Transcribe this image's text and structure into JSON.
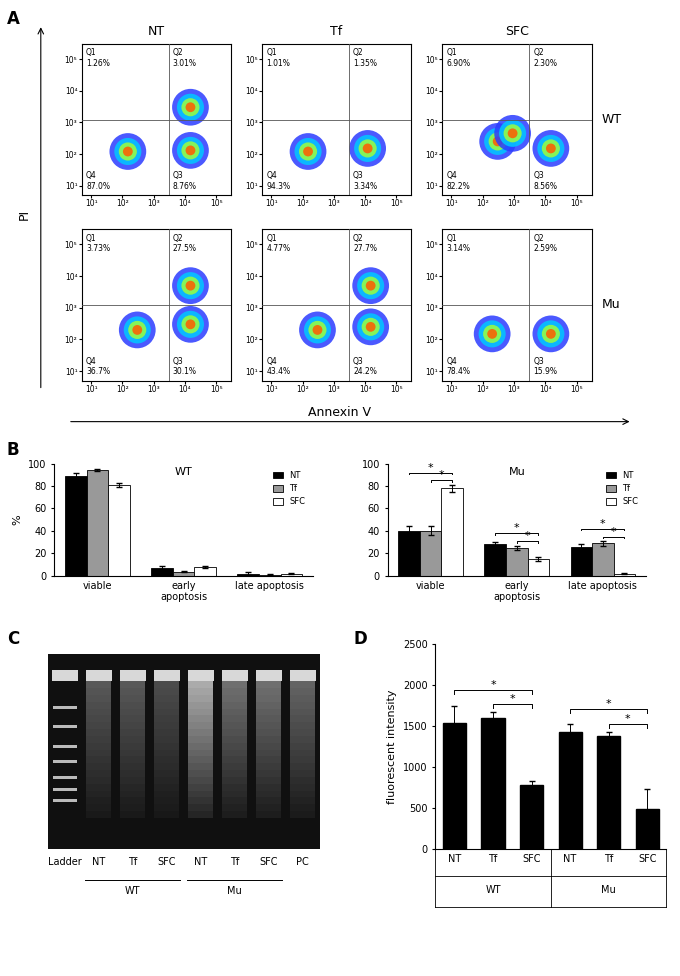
{
  "panel_labels": [
    "A",
    "B",
    "C",
    "D"
  ],
  "chart_data": [
    {
      "type": "scatter",
      "x_label": "Annexin V",
      "y_label": "PI",
      "columns": [
        "NT",
        "Tf",
        "SFC"
      ],
      "rows": [
        "WT",
        "Mu"
      ],
      "log": true,
      "xlim": [
        5,
        300000
      ],
      "ylim": [
        5,
        300000
      ],
      "xticks": [
        {
          "value": 10,
          "label": "10¹"
        },
        {
          "value": 100,
          "label": "10²"
        },
        {
          "value": 1000,
          "label": "10³"
        },
        {
          "value": 10000,
          "label": "10⁴"
        },
        {
          "value": 100000,
          "label": "10⁵"
        }
      ],
      "yticks": [
        {
          "value": 10,
          "label": "10¹"
        },
        {
          "value": 100,
          "label": "10²"
        },
        {
          "value": 1000,
          "label": "10³"
        },
        {
          "value": 10000,
          "label": "10⁴"
        },
        {
          "value": 100000,
          "label": "10⁵"
        }
      ],
      "gate": {
        "x": 3000,
        "y": 1200
      },
      "plots": [
        {
          "row": "WT",
          "column": "NT",
          "quadrants": [
            {
              "name": "Q1",
              "label": "1.26%"
            },
            {
              "name": "Q2",
              "label": "3.01%"
            },
            {
              "name": "Q3",
              "label": "8.76%"
            },
            {
              "name": "Q4",
              "label": "87.0%"
            }
          ],
          "clusters": [
            {
              "x": 150,
              "y": 120
            },
            {
              "x": 15000,
              "y": 130
            },
            {
              "x": 15000,
              "y": 3000
            }
          ]
        },
        {
          "row": "WT",
          "column": "Tf",
          "quadrants": [
            {
              "name": "Q1",
              "label": "1.01%"
            },
            {
              "name": "Q2",
              "label": "1.35%"
            },
            {
              "name": "Q3",
              "label": "3.34%"
            },
            {
              "name": "Q4",
              "label": "94.3%"
            }
          ],
          "clusters": [
            {
              "x": 150,
              "y": 120
            },
            {
              "x": 12000,
              "y": 150
            }
          ]
        },
        {
          "row": "WT",
          "column": "SFC",
          "quadrants": [
            {
              "name": "Q1",
              "label": "6.90%"
            },
            {
              "name": "Q2",
              "label": "2.30%"
            },
            {
              "name": "Q3",
              "label": "8.56%"
            },
            {
              "name": "Q4",
              "label": "82.2%"
            }
          ],
          "clusters": [
            {
              "x": 300,
              "y": 250
            },
            {
              "x": 900,
              "y": 450
            },
            {
              "x": 15000,
              "y": 150
            }
          ]
        },
        {
          "row": "Mu",
          "column": "NT",
          "quadrants": [
            {
              "name": "Q1",
              "label": "3.73%"
            },
            {
              "name": "Q2",
              "label": "27.5%"
            },
            {
              "name": "Q3",
              "label": "30.1%"
            },
            {
              "name": "Q4",
              "label": "36.7%"
            }
          ],
          "clusters": [
            {
              "x": 300,
              "y": 200
            },
            {
              "x": 15000,
              "y": 300
            },
            {
              "x": 15000,
              "y": 5000
            }
          ]
        },
        {
          "row": "Mu",
          "column": "Tf",
          "quadrants": [
            {
              "name": "Q1",
              "label": "4.77%"
            },
            {
              "name": "Q2",
              "label": "27.7%"
            },
            {
              "name": "Q3",
              "label": "24.2%"
            },
            {
              "name": "Q4",
              "label": "43.4%"
            }
          ],
          "clusters": [
            {
              "x": 300,
              "y": 200
            },
            {
              "x": 15000,
              "y": 250
            },
            {
              "x": 15000,
              "y": 5000
            }
          ]
        },
        {
          "row": "Mu",
          "column": "SFC",
          "quadrants": [
            {
              "name": "Q1",
              "label": "3.14%"
            },
            {
              "name": "Q2",
              "label": "2.59%"
            },
            {
              "name": "Q3",
              "label": "15.9%"
            },
            {
              "name": "Q4",
              "label": "78.4%"
            }
          ],
          "clusters": [
            {
              "x": 200,
              "y": 150
            },
            {
              "x": 15000,
              "y": 150
            }
          ]
        }
      ]
    },
    {
      "type": "bar",
      "title": "WT",
      "y_label": "%",
      "categories": [
        "viable",
        "early\napoptosis",
        "late apoptosis"
      ],
      "series": [
        {
          "name": "NT",
          "color": "#000000",
          "values": [
            89,
            7,
            2
          ],
          "errors": [
            3,
            2,
            1
          ]
        },
        {
          "name": "Tf",
          "color": "#999999",
          "values": [
            94,
            3.5,
            1
          ],
          "errors": [
            1,
            0.5,
            0.5
          ]
        },
        {
          "name": "SFC",
          "color": "#ffffff",
          "values": [
            81,
            8,
            2
          ],
          "errors": [
            2,
            1,
            0.5
          ]
        }
      ],
      "ylim": [
        0,
        100
      ],
      "yticks": [
        0,
        20,
        40,
        60,
        80,
        100
      ],
      "legend": "upper right"
    },
    {
      "type": "bar",
      "title": "Mu",
      "categories": [
        "viable",
        "early\napoptosis",
        "late apoptosis"
      ],
      "series": [
        {
          "name": "NT",
          "color": "#000000",
          "values": [
            40,
            28,
            26
          ],
          "errors": [
            4,
            2,
            2
          ]
        },
        {
          "name": "Tf",
          "color": "#999999",
          "values": [
            40,
            25,
            29
          ],
          "errors": [
            4,
            2,
            2
          ]
        },
        {
          "name": "SFC",
          "color": "#ffffff",
          "values": [
            78,
            15,
            2
          ],
          "errors": [
            3,
            1.5,
            0.5
          ]
        }
      ],
      "ylim": [
        0,
        100
      ],
      "yticks": [
        0,
        20,
        40,
        60,
        80,
        100
      ],
      "legend": "upper right",
      "significance": [
        {
          "category": 0,
          "from": "NT",
          "to": "SFC",
          "label": "*"
        },
        {
          "category": 0,
          "from": "Tf",
          "to": "SFC",
          "label": "*"
        },
        {
          "category": 1,
          "from": "NT",
          "to": "SFC",
          "label": "*"
        },
        {
          "category": 1,
          "from": "Tf",
          "to": "SFC",
          "label": "*"
        },
        {
          "category": 2,
          "from": "NT",
          "to": "SFC",
          "label": "*"
        },
        {
          "category": 2,
          "from": "Tf",
          "to": "SFC",
          "label": "*"
        }
      ]
    },
    {
      "type": "gel",
      "lanes": [
        "Ladder",
        "NT",
        "Tf",
        "SFC",
        "NT",
        "Tf",
        "SFC",
        "PC"
      ],
      "lane_groups": [
        null,
        "WT",
        "WT",
        "WT",
        "Mu",
        "Mu",
        "Mu",
        null
      ]
    },
    {
      "type": "bar",
      "y_label": "fluorescent intensity",
      "categories": [
        "NT",
        "Tf",
        "SFC",
        "NT",
        "Tf",
        "SFC"
      ],
      "groups": [
        "WT",
        "WT",
        "WT",
        "Mu",
        "Mu",
        "Mu"
      ],
      "values": [
        1540,
        1600,
        780,
        1430,
        1380,
        490
      ],
      "errors": [
        210,
        70,
        50,
        100,
        50,
        240
      ],
      "color": "#000000",
      "ylim": [
        0,
        2500
      ],
      "yticks": [
        0,
        500,
        1000,
        1500,
        2000,
        2500
      ],
      "significance": [
        {
          "from": 0,
          "to": 2,
          "label": "*"
        },
        {
          "from": 1,
          "to": 2,
          "label": "*"
        },
        {
          "from": 3,
          "to": 5,
          "label": "*"
        },
        {
          "from": 4,
          "to": 5,
          "label": "*"
        }
      ]
    }
  ]
}
